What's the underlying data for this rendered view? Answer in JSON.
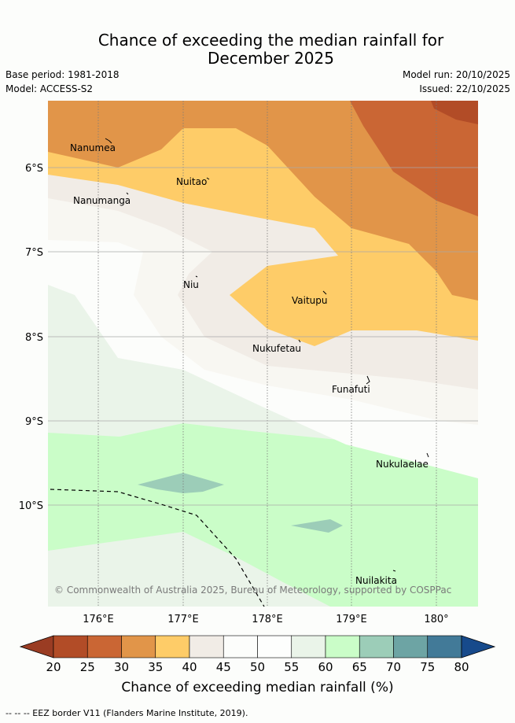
{
  "title_line1": "Chance of exceeding the median rainfall for",
  "title_line2": "December 2025",
  "base_period": "Base period: 1981-2018",
  "model": "Model: ACCESS-S2",
  "model_run": "Model run: 20/10/2025",
  "issued": "Issued: 22/10/2025",
  "copyright": "© Commonwealth of Australia 2025, Bureau of Meteorology, supported by COSPPac",
  "axes": {
    "x_ticks": [
      "176°E",
      "177°E",
      "178°E",
      "179°E",
      "180°"
    ],
    "y_ticks": [
      "6°S",
      "7°S",
      "8°S",
      "9°S",
      "10°S"
    ]
  },
  "places": [
    {
      "name": "Nanumea"
    },
    {
      "name": "Nuitao"
    },
    {
      "name": "Nanumanga"
    },
    {
      "name": "Niu"
    },
    {
      "name": "Vaitupu"
    },
    {
      "name": "Nukufetau"
    },
    {
      "name": "Funafuti"
    },
    {
      "name": "Nukulaelae"
    },
    {
      "name": "Nuilakita"
    }
  ],
  "colorbar": {
    "title": "Chance of exceeding median rainfall (%)",
    "ticks": [
      "20",
      "25",
      "30",
      "35",
      "40",
      "45",
      "50",
      "55",
      "60",
      "65",
      "70",
      "75",
      "80"
    ],
    "colors": [
      "#b24c27",
      "#ca6634",
      "#e19549",
      "#fecc68",
      "#f1ece6",
      "#fcfdfb",
      "#fdfefd",
      "#eaf4e9",
      "#cafdc8",
      "#9ccdb8",
      "#6da4a4",
      "#427a98"
    ],
    "under_color": "#9a3c23",
    "over_color": "#174a8b"
  },
  "footer": "-- -- -- EEZ border V11 (Flanders Marine Institute, 2019)."
}
